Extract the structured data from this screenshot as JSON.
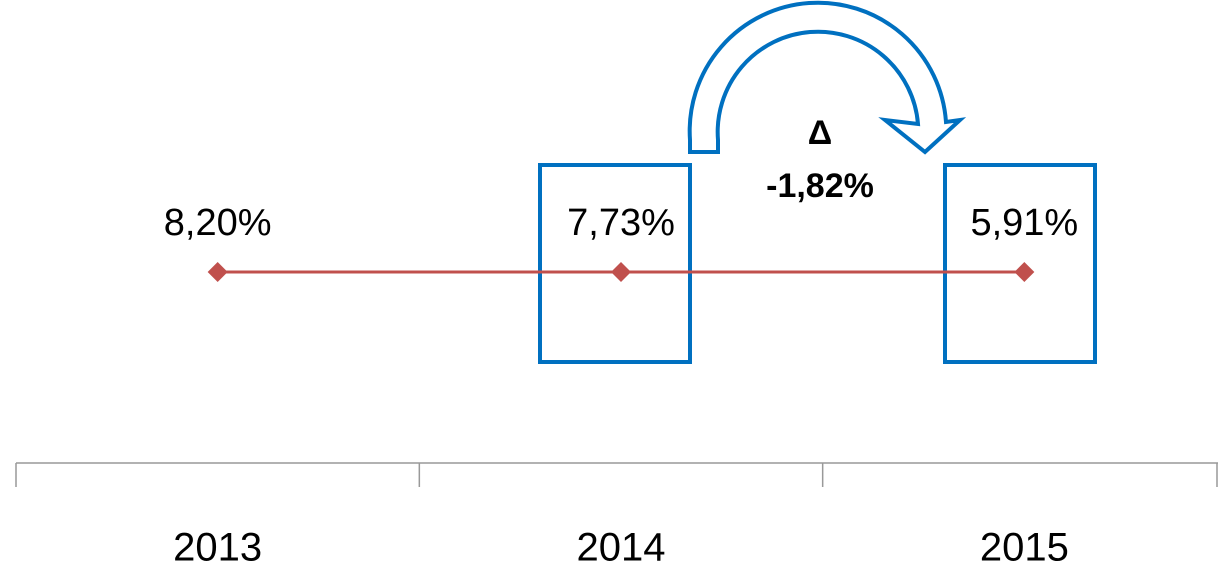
{
  "chart_data": {
    "type": "line",
    "categories": [
      "2013",
      "2014",
      "2015"
    ],
    "series": [
      {
        "color": "#c0504d",
        "values": [
          8.2,
          7.73,
          5.91
        ],
        "value_labels": [
          "8,20%",
          "7,73%",
          "5,91%"
        ]
      }
    ],
    "annotations": [
      "Δ",
      "-1,82%"
    ]
  }
}
